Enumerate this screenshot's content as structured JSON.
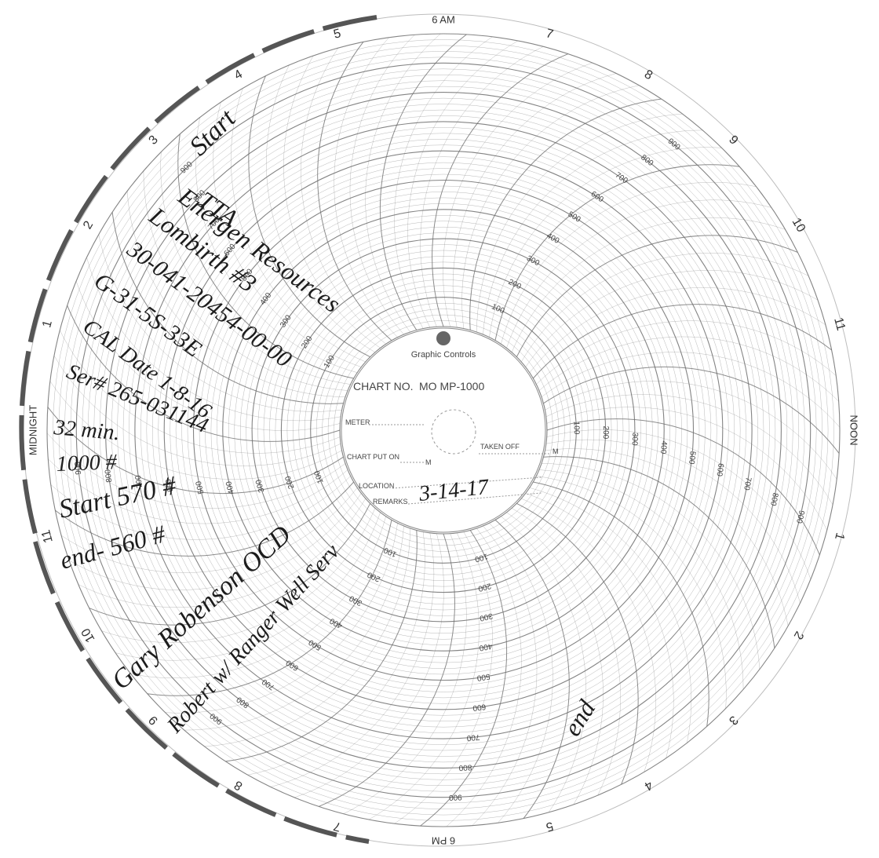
{
  "chart_card": {
    "brand": "Graphic Controls",
    "chart_no_label": "CHART NO.",
    "chart_no_value": "MO MP-1000",
    "meter_label": "METER",
    "chart_put_on_label": "CHART PUT ON",
    "taken_off_label": "TAKEN OFF",
    "m_suffix": "M",
    "location_label": "LOCATION",
    "remarks_label": "REMARKS",
    "remarks_value": "3-14-17"
  },
  "time_ring": {
    "labels": [
      "NOON",
      "1",
      "2",
      "3",
      "4",
      "5",
      "6 PM",
      "7",
      "8",
      "9",
      "10",
      "11",
      "MIDNIGHT",
      "1",
      "2",
      "3",
      "4",
      "5",
      "6 AM",
      "7",
      "8",
      "9",
      "10",
      "11"
    ]
  },
  "scale": {
    "ticks": [
      "100",
      "200",
      "300",
      "400",
      "500",
      "600",
      "700",
      "800",
      "900"
    ]
  },
  "handwriting": {
    "start": "Start",
    "company1": "TTA",
    "company2": "Energen Resources",
    "well": "Lombirth #3",
    "api": "30-041-20454-00-00",
    "location": "G-31-5S-33E",
    "cal_date": "CAL Date 1-8-16",
    "serial": "Ser# 265-031144",
    "duration": "32 min.",
    "range": "1000 #",
    "start_pressure": "Start 570 #",
    "end_pressure": "end- 560 #",
    "inspector": "Gary Robenson OCD",
    "operator": "Robert w/ Ranger Well Serv",
    "end_mark": "end"
  },
  "colors": {
    "grid": "#6f6f6f",
    "ink": "#1c1c1c",
    "paper": "#ffffff"
  }
}
